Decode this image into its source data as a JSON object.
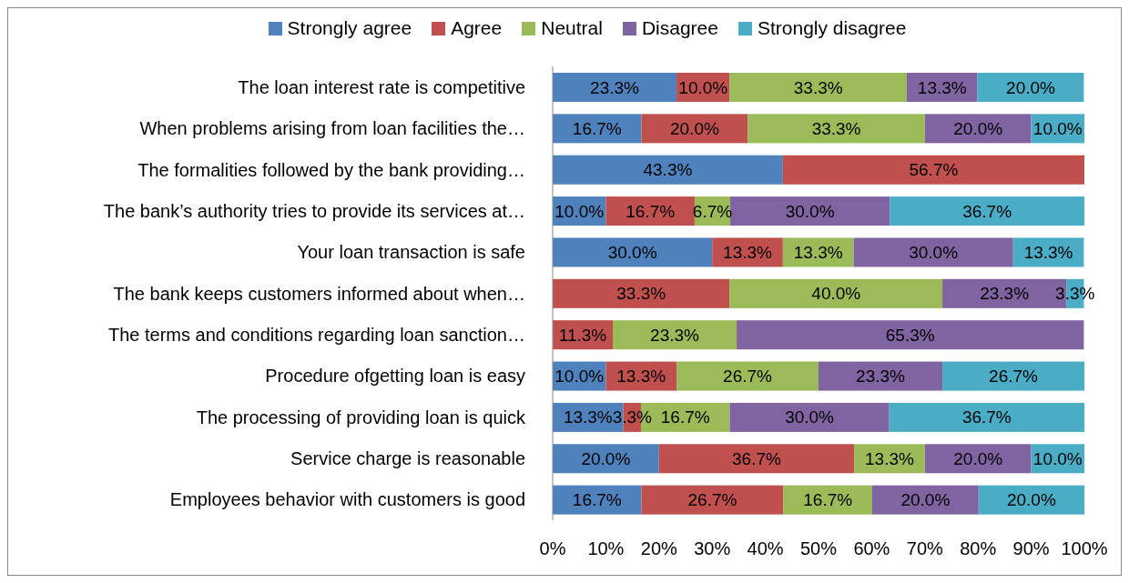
{
  "chart_data": {
    "type": "bar",
    "orientation": "horizontal",
    "stacked": true,
    "categories": [
      "The loan interest rate is competitive",
      "When problems arising from loan facilities the…",
      "The formalities followed by the bank providing…",
      "The bank’s authority tries to provide its services at…",
      "Your loan transaction is safe",
      "The bank keeps customers informed about when…",
      "The terms and conditions regarding loan sanction…",
      "Procedure ofgetting loan is easy",
      "The processing of providing loan is quick",
      "Service charge is reasonable",
      "Employees behavior with customers is good"
    ],
    "series": [
      {
        "name": "Strongly agree",
        "color": "#4f81bd",
        "values": [
          23.3,
          16.7,
          43.3,
          10.0,
          30.0,
          null,
          null,
          10.0,
          13.3,
          20.0,
          16.7
        ],
        "value_labels": [
          "23.3%",
          "16.7%",
          "43.3%",
          "10.0%",
          "30.0%",
          null,
          null,
          "10.0%",
          "13.3%",
          "20.0%",
          "16.7%"
        ]
      },
      {
        "name": "Agree",
        "color": "#c0504d",
        "values": [
          10.0,
          20.0,
          56.7,
          16.7,
          13.3,
          33.3,
          11.3,
          13.3,
          3.3,
          36.7,
          26.7
        ],
        "value_labels": [
          "10.0%",
          "20.0%",
          "56.7%",
          "16.7%",
          "13.3%",
          "33.3%",
          "11.3%",
          "13.3%",
          "3.3%",
          "36.7%",
          "26.7%"
        ]
      },
      {
        "name": "Neutral",
        "color": "#9bbb59",
        "values": [
          33.3,
          33.3,
          null,
          6.7,
          13.3,
          40.0,
          23.3,
          26.7,
          16.7,
          13.3,
          16.7
        ],
        "value_labels": [
          "33.3%",
          "33.3%",
          null,
          "6.7%",
          "13.3%",
          "40.0%",
          "23.3%",
          "26.7%",
          "16.7%",
          "13.3%",
          "16.7%"
        ]
      },
      {
        "name": "Disagree",
        "color": "#8064a2",
        "values": [
          13.3,
          20.0,
          null,
          30.0,
          30.0,
          23.3,
          65.3,
          23.3,
          30.0,
          20.0,
          20.0
        ],
        "value_labels": [
          "13.3%",
          "20.0%",
          null,
          "30.0%",
          "30.0%",
          "23.3%",
          "65.3%",
          "23.3%",
          "30.0%",
          "20.0%",
          "20.0%"
        ]
      },
      {
        "name": "Strongly disagree",
        "color": "#4bacc6",
        "values": [
          20.0,
          10.0,
          null,
          36.7,
          13.3,
          3.3,
          null,
          26.7,
          36.7,
          10.0,
          20.0
        ],
        "value_labels": [
          "20.0%",
          "10.0%",
          null,
          "36.7%",
          "13.3%",
          "3.3%",
          null,
          "26.7%",
          "36.7%",
          "10.0%",
          "20.0%"
        ]
      }
    ],
    "xlim": [
      0,
      100
    ],
    "xticks": [
      {
        "value": 0,
        "label": "0%"
      },
      {
        "value": 10,
        "label": "10%"
      },
      {
        "value": 20,
        "label": "20%"
      },
      {
        "value": 30,
        "label": "30%"
      },
      {
        "value": 40,
        "label": "40%"
      },
      {
        "value": 50,
        "label": "50%"
      },
      {
        "value": 60,
        "label": "60%"
      },
      {
        "value": 70,
        "label": "70%"
      },
      {
        "value": 80,
        "label": "80%"
      },
      {
        "value": 90,
        "label": "90%"
      },
      {
        "value": 100,
        "label": "100%"
      }
    ],
    "grid": false,
    "legend": "top"
  }
}
